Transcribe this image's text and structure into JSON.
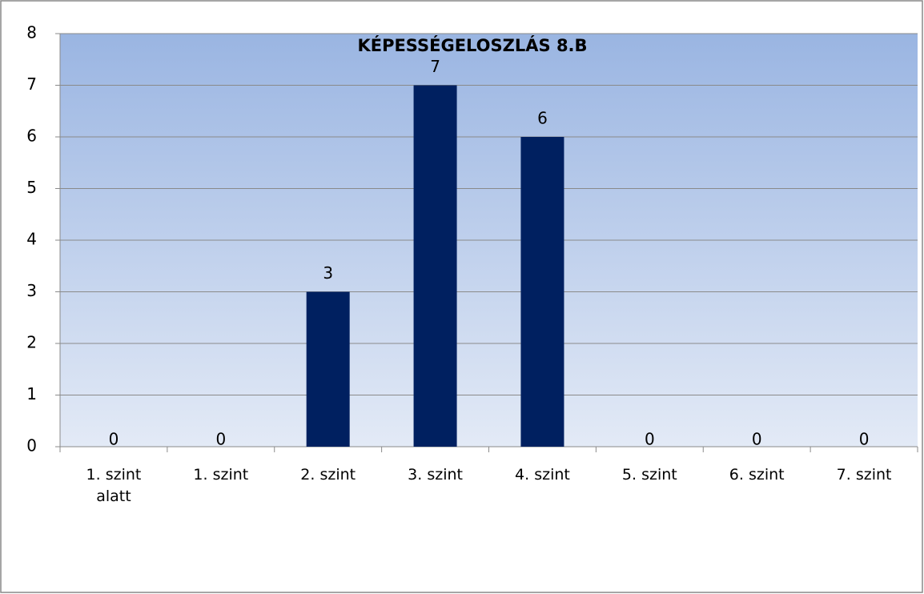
{
  "chart_data": {
    "type": "bar",
    "title": "KÉPESSÉGELOSZLÁS 8.B",
    "categories": [
      "1. szint alatt",
      "1. szint",
      "2. szint",
      "3. szint",
      "4. szint",
      "5. szint",
      "6. szint",
      "7. szint"
    ],
    "values": [
      0,
      0,
      3,
      7,
      6,
      0,
      0,
      0
    ],
    "color": "#002060",
    "ylim": [
      0,
      8
    ],
    "yticks": [
      0,
      1,
      2,
      3,
      4,
      5,
      6,
      7,
      8
    ],
    "grid": true
  }
}
